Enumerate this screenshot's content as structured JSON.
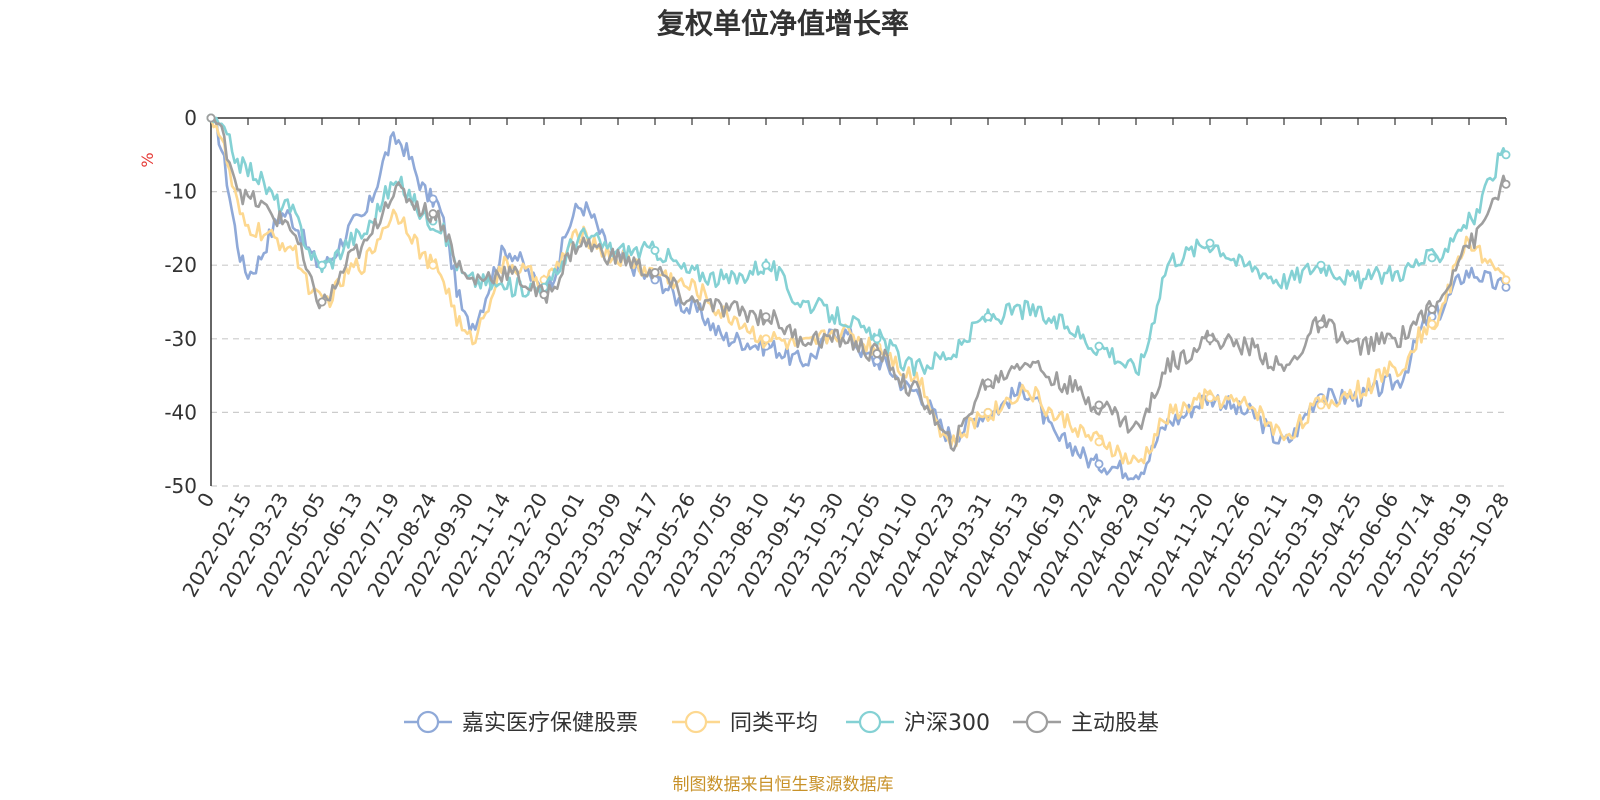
{
  "chart_data": {
    "type": "line",
    "title": "复权单位净值增长率",
    "ylabel": "%",
    "ylim": [
      -50,
      0
    ],
    "yticks": [
      "0",
      "-10",
      "-20",
      "-30",
      "-40",
      "-50"
    ],
    "x": [
      "0",
      "2022-02-15",
      "2022-03-23",
      "2022-05-05",
      "2022-06-13",
      "2022-07-19",
      "2022-08-24",
      "2022-09-30",
      "2022-11-14",
      "2022-12-20",
      "2023-02-01",
      "2023-03-09",
      "2023-04-17",
      "2023-05-26",
      "2023-07-05",
      "2023-08-10",
      "2023-09-15",
      "2023-10-30",
      "2023-12-05",
      "2024-01-10",
      "2024-02-23",
      "2024-03-31",
      "2024-05-13",
      "2024-06-19",
      "2024-07-24",
      "2024-08-29",
      "2024-10-15",
      "2024-11-20",
      "2024-12-26",
      "2025-02-11",
      "2025-03-19",
      "2025-04-25",
      "2025-06-06",
      "2025-07-14",
      "2025-08-19",
      "2025-10-28"
    ],
    "series": [
      {
        "name": "嘉实医疗保健股票",
        "color": "#8fa9d8",
        "values": [
          0,
          -21,
          -13,
          -20,
          -14,
          -3,
          -11,
          -28,
          -18,
          -23,
          -12,
          -19,
          -22,
          -26,
          -30,
          -31,
          -33,
          -29,
          -33,
          -37,
          -43,
          -40,
          -37,
          -44,
          -47,
          -48,
          -41,
          -38,
          -40,
          -44,
          -38,
          -38,
          -36,
          -27,
          -21,
          -23
        ]
      },
      {
        "name": "同类平均",
        "color": "#fdd890",
        "values": [
          0,
          -15,
          -17,
          -25,
          -20,
          -13,
          -20,
          -30,
          -20,
          -22,
          -16,
          -19,
          -21,
          -23,
          -27,
          -30,
          -31,
          -29,
          -31,
          -35,
          -44,
          -40,
          -37,
          -41,
          -44,
          -47,
          -40,
          -38,
          -39,
          -43,
          -39,
          -37,
          -34,
          -28,
          -17,
          -22
        ]
      },
      {
        "name": "沪深300",
        "color": "#84d1d4",
        "values": [
          0,
          -7,
          -12,
          -20,
          -16,
          -9,
          -14,
          -22,
          -23,
          -23,
          -16,
          -18,
          -18,
          -21,
          -22,
          -20,
          -25,
          -27,
          -30,
          -34,
          -32,
          -27,
          -26,
          -28,
          -31,
          -34,
          -19,
          -17,
          -20,
          -22,
          -20,
          -22,
          -21,
          -19,
          -14,
          -5
        ]
      },
      {
        "name": "主动股基",
        "color": "#9e9e9e",
        "values": [
          0,
          -11,
          -14,
          -25,
          -18,
          -10,
          -13,
          -22,
          -21,
          -24,
          -17,
          -19,
          -21,
          -25,
          -26,
          -27,
          -30,
          -30,
          -32,
          -37,
          -44,
          -36,
          -33,
          -36,
          -39,
          -42,
          -33,
          -30,
          -31,
          -34,
          -28,
          -31,
          -30,
          -26,
          -17,
          -9
        ]
      }
    ],
    "legend_position": "bottom-center",
    "grid": "horizontal-dashed"
  },
  "footer": {
    "source": "制图数据来自恒生聚源数据库"
  }
}
